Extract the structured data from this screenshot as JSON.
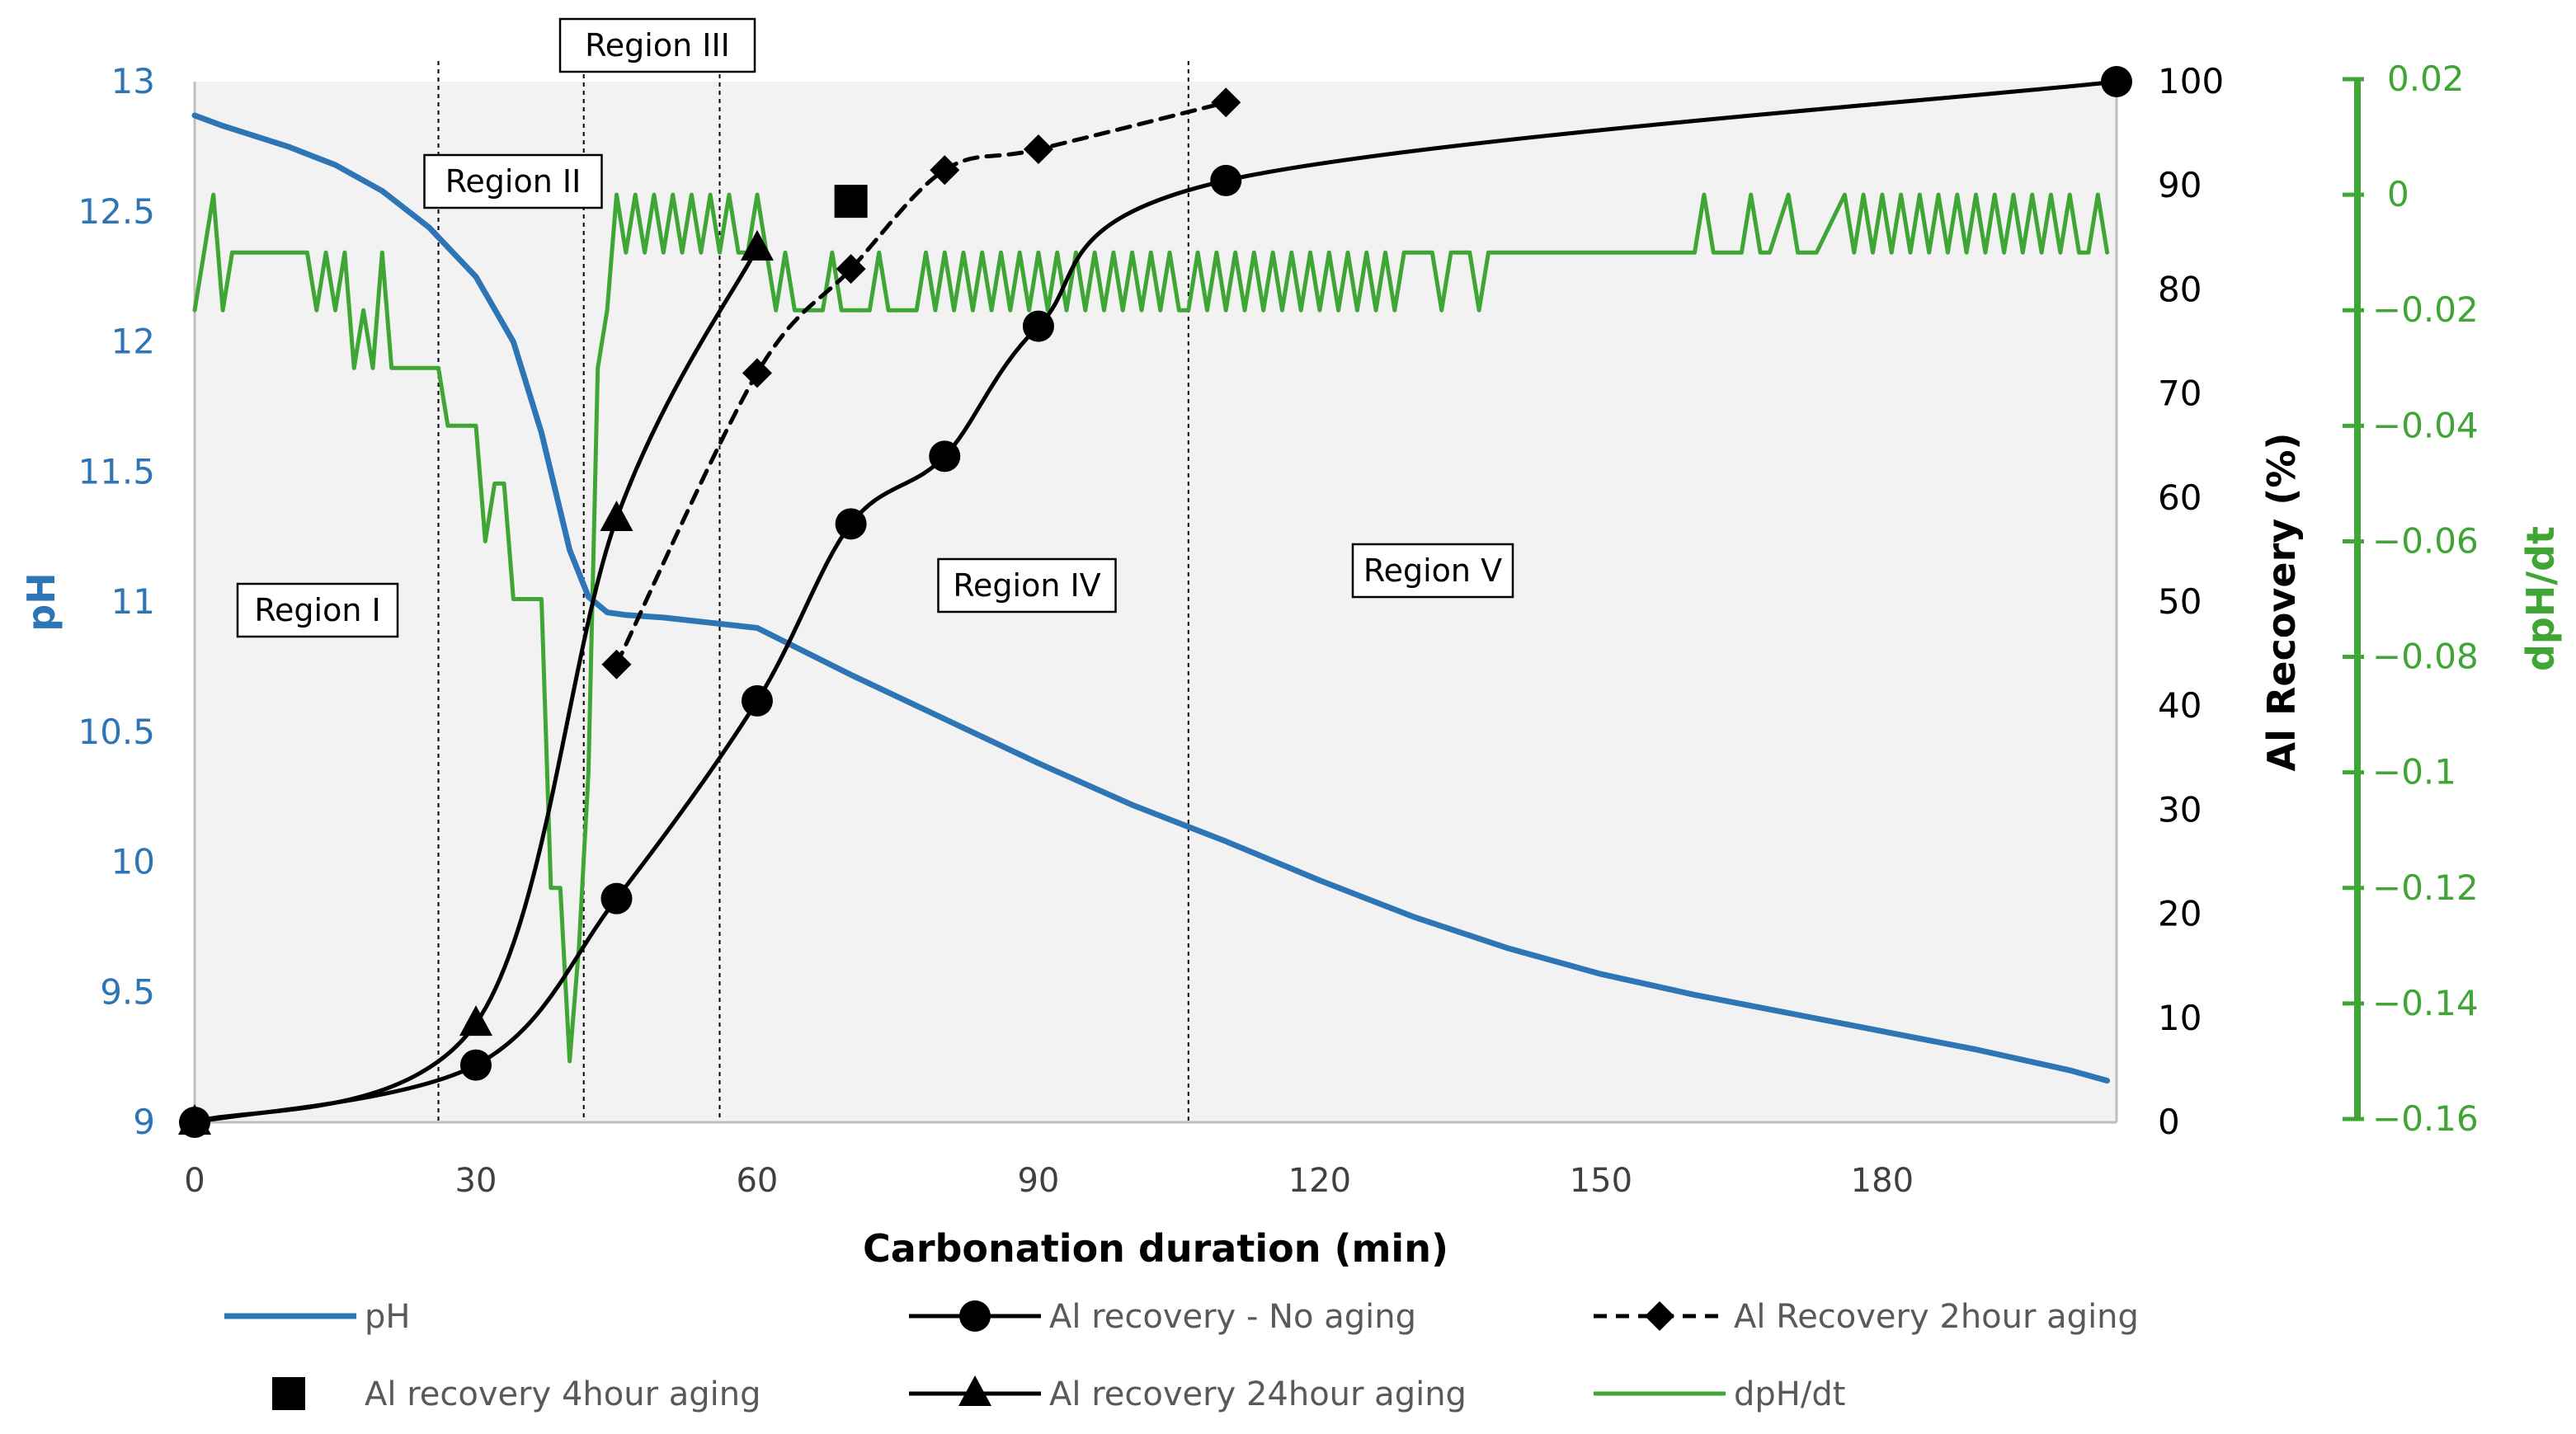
{
  "chart_data": {
    "type": "line",
    "xlabel": "Carbonation duration (min)",
    "xlim": [
      0,
      205
    ],
    "xticks": [
      0,
      30,
      60,
      90,
      120,
      150,
      180
    ],
    "axes": {
      "ph": {
        "label": "pH",
        "lim": [
          9,
          13
        ],
        "ticks": [
          "9",
          "9.5",
          "10",
          "10.5",
          "11",
          "11.5",
          "12",
          "12.5",
          "13"
        ],
        "color": "#2E75B6"
      },
      "al": {
        "label": "Al Recovery (%)",
        "lim": [
          0,
          100
        ],
        "ticks": [
          "0",
          "10",
          "20",
          "30",
          "40",
          "50",
          "60",
          "70",
          "80",
          "90",
          "100"
        ],
        "color": "#000000"
      },
      "dpdt": {
        "label": "dpH/dt",
        "lim": [
          -0.16,
          0.02
        ],
        "ticks": [
          "0.02",
          "0",
          "−0.02",
          "−0.04",
          "−0.06",
          "−0.08",
          "−0.1",
          "−0.12",
          "−0.14",
          "−0.16"
        ],
        "color": "#3FA535"
      }
    },
    "regions": {
      "boundaries": [
        26,
        41.5,
        56,
        106
      ],
      "labels": [
        "Region I",
        "Region II",
        "Region III",
        "Region IV",
        "Region V"
      ]
    },
    "series": [
      {
        "name": "pH",
        "axis": "ph",
        "color": "#2E75B6",
        "style": "solid",
        "marker": "none",
        "x": [
          0,
          3,
          10,
          15,
          20,
          25,
          30,
          34,
          37,
          40,
          42,
          44,
          46,
          50,
          55,
          60,
          70,
          80,
          90,
          100,
          110,
          120,
          130,
          140,
          150,
          160,
          170,
          180,
          190,
          200,
          204
        ],
        "y": [
          12.87,
          12.83,
          12.75,
          12.68,
          12.58,
          12.44,
          12.25,
          12.0,
          11.65,
          11.2,
          11.02,
          10.96,
          10.95,
          10.94,
          10.92,
          10.9,
          10.72,
          10.55,
          10.38,
          10.22,
          10.08,
          9.93,
          9.79,
          9.67,
          9.57,
          9.49,
          9.42,
          9.35,
          9.28,
          9.2,
          9.16
        ]
      },
      {
        "name": "Al recovery - No aging",
        "axis": "al",
        "color": "#000000",
        "style": "solid",
        "marker": "circle",
        "x": [
          0,
          30,
          45,
          60,
          70,
          80,
          90,
          110,
          205
        ],
        "y": [
          0,
          5.5,
          21.5,
          40.5,
          57.5,
          64,
          76.5,
          90.5,
          100
        ]
      },
      {
        "name": "Al Recovery 2hour aging",
        "axis": "al",
        "color": "#000000",
        "style": "dashed",
        "marker": "diamond",
        "x": [
          45,
          60,
          70,
          80,
          90,
          110
        ],
        "y": [
          44,
          72,
          82,
          91.5,
          93.5,
          98
        ]
      },
      {
        "name": "Al recovery 4hour aging",
        "axis": "al",
        "color": "#000000",
        "style": "none",
        "marker": "square",
        "x": [
          70
        ],
        "y": [
          88.5
        ]
      },
      {
        "name": "Al recovery 24hour aging",
        "axis": "al",
        "color": "#000000",
        "style": "solid",
        "marker": "triangle",
        "x": [
          0,
          30,
          45,
          60
        ],
        "y": [
          0,
          9.5,
          58,
          84
        ]
      },
      {
        "name": "dpH/dt",
        "axis": "dpdt",
        "color": "#3FA535",
        "style": "solid",
        "marker": "none",
        "x": [
          0,
          1,
          2,
          3,
          4,
          5,
          6,
          8,
          12,
          13,
          14,
          15,
          16,
          17,
          18,
          19,
          20,
          21,
          22,
          23,
          24,
          25,
          26,
          27,
          28,
          29,
          30,
          31,
          32,
          33,
          34,
          35,
          36,
          37,
          38,
          39,
          40,
          41,
          42,
          43,
          44,
          45,
          46,
          47,
          48,
          49,
          50,
          51,
          52,
          53,
          54,
          55,
          56,
          57,
          58,
          59,
          60,
          61,
          62,
          63,
          64,
          65,
          66,
          67,
          68,
          69,
          70,
          71,
          72,
          73,
          74,
          75,
          76,
          77,
          78,
          79,
          80,
          81,
          82,
          83,
          84,
          85,
          86,
          87,
          88,
          89,
          90,
          91,
          92,
          93,
          94,
          95,
          96,
          97,
          98,
          99,
          100,
          101,
          102,
          103,
          104,
          105,
          106,
          107,
          108,
          109,
          110,
          111,
          112,
          113,
          114,
          115,
          116,
          117,
          118,
          119,
          120,
          121,
          122,
          123,
          124,
          125,
          126,
          127,
          128,
          129,
          130,
          131,
          132,
          133,
          134,
          135,
          136,
          137,
          138,
          139,
          140,
          141,
          142,
          143,
          145,
          150,
          155,
          159,
          160,
          161,
          162,
          163,
          165,
          166,
          167,
          168,
          170,
          171,
          172,
          173,
          176,
          177,
          178,
          179,
          180,
          181,
          182,
          183,
          184,
          185,
          186,
          187,
          188,
          189,
          190,
          191,
          192,
          193,
          194,
          195,
          196,
          197,
          198,
          199,
          200,
          201,
          202,
          203,
          204
        ],
        "y": [
          -0.02,
          -0.01,
          0,
          -0.02,
          -0.01,
          -0.01,
          -0.01,
          -0.01,
          -0.01,
          -0.02,
          -0.01,
          -0.02,
          -0.01,
          -0.03,
          -0.02,
          -0.03,
          -0.01,
          -0.03,
          -0.03,
          -0.03,
          -0.03,
          -0.03,
          -0.03,
          -0.04,
          -0.04,
          -0.04,
          -0.04,
          -0.06,
          -0.05,
          -0.05,
          -0.07,
          -0.07,
          -0.07,
          -0.07,
          -0.12,
          -0.12,
          -0.15,
          -0.13,
          -0.1,
          -0.03,
          -0.02,
          0,
          -0.01,
          0,
          -0.01,
          0,
          -0.01,
          0,
          -0.01,
          0,
          -0.01,
          0,
          -0.01,
          0,
          -0.01,
          -0.01,
          0,
          -0.01,
          -0.02,
          -0.01,
          -0.02,
          -0.02,
          -0.02,
          -0.02,
          -0.01,
          -0.02,
          -0.02,
          -0.02,
          -0.02,
          -0.01,
          -0.02,
          -0.02,
          -0.02,
          -0.02,
          -0.01,
          -0.02,
          -0.01,
          -0.02,
          -0.01,
          -0.02,
          -0.01,
          -0.02,
          -0.01,
          -0.02,
          -0.01,
          -0.02,
          -0.01,
          -0.02,
          -0.01,
          -0.02,
          -0.01,
          -0.02,
          -0.01,
          -0.02,
          -0.01,
          -0.02,
          -0.01,
          -0.02,
          -0.01,
          -0.02,
          -0.01,
          -0.02,
          -0.02,
          -0.01,
          -0.02,
          -0.01,
          -0.02,
          -0.01,
          -0.02,
          -0.01,
          -0.02,
          -0.01,
          -0.02,
          -0.01,
          -0.02,
          -0.01,
          -0.02,
          -0.01,
          -0.02,
          -0.01,
          -0.02,
          -0.01,
          -0.02,
          -0.01,
          -0.02,
          -0.01,
          -0.01,
          -0.01,
          -0.01,
          -0.02,
          -0.01,
          -0.01,
          -0.01,
          -0.02,
          -0.01,
          -0.01,
          -0.01,
          -0.01,
          -0.01,
          -0.01,
          -0.01,
          -0.01,
          -0.01,
          -0.01,
          -0.01,
          0,
          -0.01,
          -0.01,
          -0.01,
          0,
          -0.01,
          -0.01,
          0,
          -0.01,
          -0.01,
          -0.01,
          0,
          -0.01,
          0,
          -0.01,
          0,
          -0.01,
          0,
          -0.01,
          0,
          -0.01,
          0,
          -0.01,
          0,
          -0.01,
          0,
          -0.01,
          0,
          -0.01,
          0,
          -0.01,
          0,
          -0.01,
          0,
          -0.01,
          0,
          -0.01,
          -0.01,
          0,
          -0.01
        ]
      }
    ]
  }
}
